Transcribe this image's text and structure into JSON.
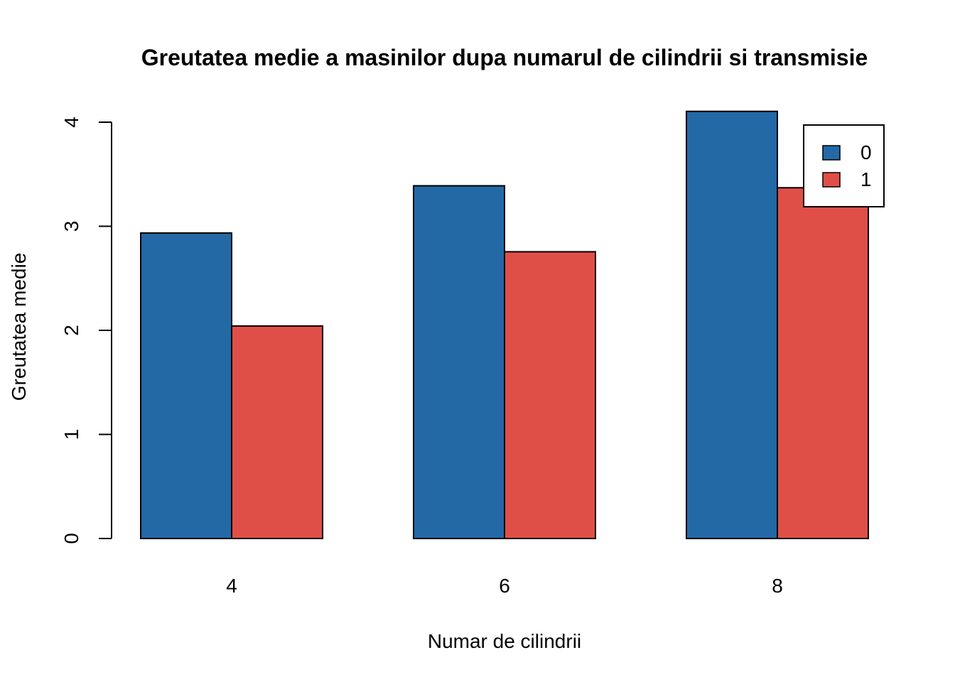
{
  "chart_data": {
    "type": "bar",
    "layout": "grouped",
    "title": "Greutatea medie a masinilor dupa numarul de cilindrii si transmisie",
    "xlabel": "Numar de cilindrii",
    "ylabel": "Greutatea medie",
    "categories": [
      "4",
      "6",
      "8"
    ],
    "series": [
      {
        "name": "0",
        "color": "#2369A6",
        "values": [
          2.935,
          3.389,
          4.104
        ]
      },
      {
        "name": "1",
        "color": "#E04F47",
        "values": [
          2.042,
          2.755,
          3.37
        ]
      }
    ],
    "ylim": [
      0,
      4
    ],
    "yticks": [
      0,
      1,
      2,
      3,
      4
    ],
    "grid": false,
    "legend": {
      "position": "top-right",
      "entries": [
        "0",
        "1"
      ]
    }
  }
}
